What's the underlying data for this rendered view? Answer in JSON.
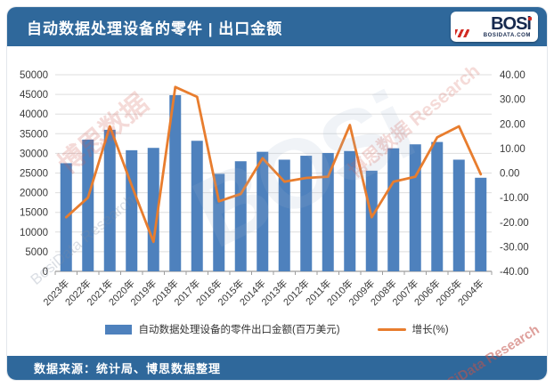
{
  "header": {
    "title": "自动数据处理设备的零件 | 出口金额",
    "logo_text": "BOSi",
    "logo_subtext": "BOSIDATA.COM"
  },
  "footer": {
    "source": "数据来源：统计局、博思数据整理"
  },
  "watermarks": [
    "博思数据",
    "BosiData Research",
    "BOSi",
    "博思数据 Research",
    "BOSiData Research"
  ],
  "chart_data": {
    "type": "bar",
    "subtype": "bar-line-combo",
    "title": "自动数据处理设备的零件 | 出口金额",
    "categories": [
      "2023年",
      "2022年",
      "2021年",
      "2020年",
      "2019年",
      "2018年",
      "2017年",
      "2016年",
      "2015年",
      "2014年",
      "2013年",
      "2012年",
      "2011年",
      "2010年",
      "2009年",
      "2008年",
      "2007年",
      "2006年",
      "2005年",
      "2004年"
    ],
    "series": [
      {
        "name": "自动数据处理设备的零件出口金额(百万美元)",
        "type": "bar",
        "axis": "left",
        "color": "#4E81BD",
        "values": [
          27500,
          33500,
          36000,
          30800,
          31400,
          44800,
          33200,
          24800,
          28000,
          30400,
          28400,
          29400,
          30100,
          30600,
          25600,
          31300,
          32300,
          32900,
          28400,
          23800
        ]
      },
      {
        "name": "增长(%)",
        "type": "line",
        "axis": "right",
        "color": "#E87D2E",
        "values": [
          -18,
          -10,
          19,
          -5,
          -28,
          35,
          31,
          -11.5,
          -8.5,
          6,
          -3.5,
          -2,
          -1.5,
          19.5,
          -18,
          -3.5,
          -1.5,
          14.5,
          19,
          -0.5
        ]
      }
    ],
    "left_axis": {
      "min": 0,
      "max": 50000,
      "step": 5000
    },
    "right_axis": {
      "min": -40,
      "max": 40,
      "step": 10,
      "decimals": 2
    },
    "grid": true,
    "legend_position": "bottom"
  }
}
